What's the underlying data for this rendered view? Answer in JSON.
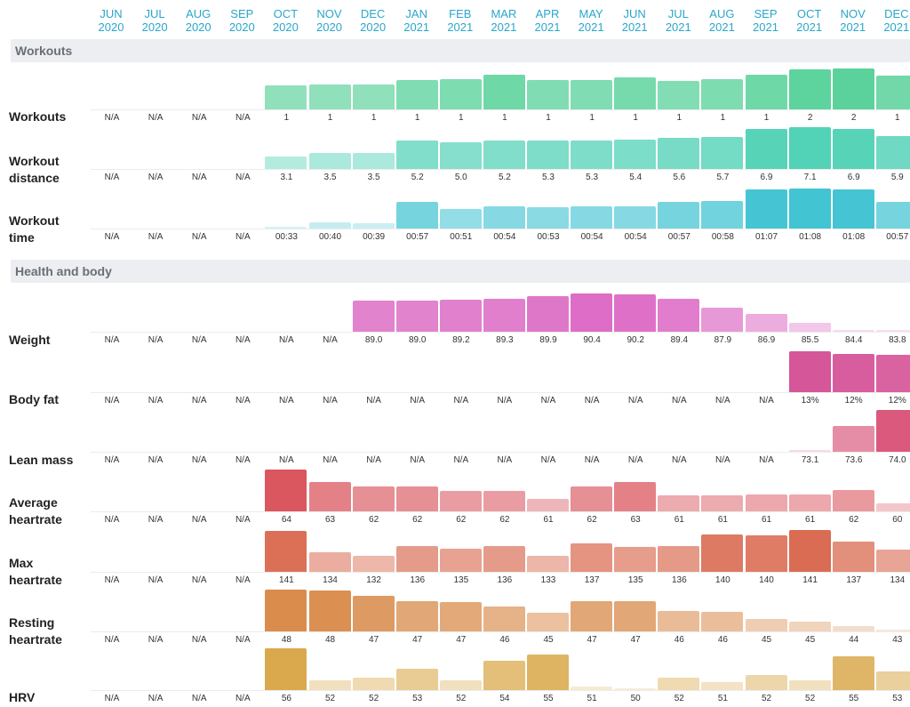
{
  "months": [
    {
      "m": "JUN",
      "y": "2020"
    },
    {
      "m": "JUL",
      "y": "2020"
    },
    {
      "m": "AUG",
      "y": "2020"
    },
    {
      "m": "SEP",
      "y": "2020"
    },
    {
      "m": "OCT",
      "y": "2020"
    },
    {
      "m": "NOV",
      "y": "2020"
    },
    {
      "m": "DEC",
      "y": "2020"
    },
    {
      "m": "JAN",
      "y": "2021"
    },
    {
      "m": "FEB",
      "y": "2021"
    },
    {
      "m": "MAR",
      "y": "2021"
    },
    {
      "m": "APR",
      "y": "2021"
    },
    {
      "m": "MAY",
      "y": "2021"
    },
    {
      "m": "JUN",
      "y": "2021"
    },
    {
      "m": "JUL",
      "y": "2021"
    },
    {
      "m": "AUG",
      "y": "2021"
    },
    {
      "m": "SEP",
      "y": "2021"
    },
    {
      "m": "OCT",
      "y": "2021"
    },
    {
      "m": "NOV",
      "y": "2021"
    },
    {
      "m": "DEC",
      "y": "2021"
    }
  ],
  "sections": [
    {
      "title": "Workouts",
      "rows": [
        0,
        1,
        2
      ]
    },
    {
      "title": "Health and body",
      "rows": [
        3,
        4,
        5,
        6,
        7,
        8,
        9
      ]
    }
  ],
  "chart_data": {
    "type": "bar",
    "categories": [
      "JUN 2020",
      "JUL 2020",
      "AUG 2020",
      "SEP 2020",
      "OCT 2020",
      "NOV 2020",
      "DEC 2020",
      "JAN 2021",
      "FEB 2021",
      "MAR 2021",
      "APR 2021",
      "MAY 2021",
      "JUN 2021",
      "JUL 2021",
      "AUG 2021",
      "SEP 2021",
      "OCT 2021",
      "NOV 2021",
      "DEC 2021"
    ],
    "series": [
      {
        "name": "Workouts",
        "color": "#4fcf94",
        "values": [
          null,
          null,
          null,
          null,
          1,
          1,
          1,
          1,
          1,
          1,
          1,
          1,
          1,
          1,
          1,
          1,
          2,
          2,
          1
        ],
        "labels": [
          "N/A",
          "N/A",
          "N/A",
          "N/A",
          "1",
          "1",
          "1",
          "1",
          "1",
          "1",
          "1",
          "1",
          "1",
          "1",
          "1",
          "1",
          "2",
          "2",
          "1"
        ],
        "barLevels": [
          0,
          0,
          0,
          0,
          0.55,
          0.56,
          0.56,
          0.66,
          0.68,
          0.78,
          0.66,
          0.66,
          0.72,
          0.64,
          0.68,
          0.78,
          0.9,
          0.92,
          0.76
        ]
      },
      {
        "name": "Workout distance",
        "color": "#4fd1b5",
        "values": [
          null,
          null,
          null,
          null,
          3.1,
          3.5,
          3.5,
          5.2,
          5.0,
          5.2,
          5.3,
          5.3,
          5.4,
          5.6,
          5.7,
          6.9,
          7.1,
          6.9,
          5.9
        ],
        "labels": [
          "N/A",
          "N/A",
          "N/A",
          "N/A",
          "3.1",
          "3.5",
          "3.5",
          "5.2",
          "5.0",
          "5.2",
          "5.3",
          "5.3",
          "5.4",
          "5.6",
          "5.7",
          "6.9",
          "7.1",
          "6.9",
          "5.9"
        ]
      },
      {
        "name": "Workout time",
        "color": "#3fc3d2",
        "values": [
          null,
          null,
          null,
          null,
          33,
          40,
          39,
          57,
          51,
          54,
          53,
          54,
          54,
          57,
          58,
          67,
          68,
          68,
          57
        ],
        "labels": [
          "N/A",
          "N/A",
          "N/A",
          "N/A",
          "00:33",
          "00:40",
          "00:39",
          "00:57",
          "00:51",
          "00:54",
          "00:53",
          "00:54",
          "00:54",
          "00:57",
          "00:58",
          "01:07",
          "01:08",
          "01:08",
          "00:57"
        ],
        "barLevels": [
          0,
          0,
          0,
          0,
          0.04,
          0.15,
          0.12,
          0.65,
          0.47,
          0.55,
          0.53,
          0.55,
          0.55,
          0.65,
          0.68,
          0.96,
          0.98,
          0.96,
          0.65
        ]
      },
      {
        "name": "Weight",
        "color": "#d95cbf",
        "values": [
          null,
          null,
          null,
          null,
          null,
          null,
          89.0,
          89.0,
          89.2,
          89.3,
          89.9,
          90.4,
          90.2,
          89.4,
          87.9,
          86.9,
          85.5,
          84.4,
          83.8
        ],
        "labels": [
          "N/A",
          "N/A",
          "N/A",
          "N/A",
          "N/A",
          "N/A",
          "89.0",
          "89.0",
          "89.2",
          "89.3",
          "89.9",
          "90.4",
          "90.2",
          "89.4",
          "87.9",
          "86.9",
          "85.5",
          "84.4",
          "83.8"
        ],
        "barLevels": [
          0,
          0,
          0,
          0,
          0,
          0,
          0.71,
          0.71,
          0.73,
          0.74,
          0.8,
          0.87,
          0.84,
          0.75,
          0.54,
          0.4,
          0.2,
          0.05,
          0.03
        ]
      },
      {
        "name": "Body fat",
        "color": "#d44f96",
        "values": [
          null,
          null,
          null,
          null,
          null,
          null,
          null,
          null,
          null,
          null,
          null,
          null,
          null,
          null,
          null,
          null,
          13,
          12,
          12
        ],
        "labels": [
          "N/A",
          "N/A",
          "N/A",
          "N/A",
          "N/A",
          "N/A",
          "N/A",
          "N/A",
          "N/A",
          "N/A",
          "N/A",
          "N/A",
          "N/A",
          "N/A",
          "N/A",
          "N/A",
          "13%",
          "12%",
          "12%"
        ],
        "barLevels": [
          0,
          0,
          0,
          0,
          0,
          0,
          0,
          0,
          0,
          0,
          0,
          0,
          0,
          0,
          0,
          0,
          0.95,
          0.9,
          0.87
        ]
      },
      {
        "name": "Lean mass",
        "color": "#d9567a",
        "values": [
          null,
          null,
          null,
          null,
          null,
          null,
          null,
          null,
          null,
          null,
          null,
          null,
          null,
          null,
          null,
          null,
          73.1,
          73.6,
          74.0
        ],
        "labels": [
          "N/A",
          "N/A",
          "N/A",
          "N/A",
          "N/A",
          "N/A",
          "N/A",
          "N/A",
          "N/A",
          "N/A",
          "N/A",
          "N/A",
          "N/A",
          "N/A",
          "N/A",
          "N/A",
          "73.1",
          "73.6",
          "74.0"
        ],
        "barLevels": [
          0,
          0,
          0,
          0,
          0,
          0,
          0,
          0,
          0,
          0,
          0,
          0,
          0,
          0,
          0,
          0,
          0.05,
          0.6,
          0.98
        ]
      },
      {
        "name": "Average heartrate",
        "color": "#d9545c",
        "values": [
          null,
          null,
          null,
          null,
          64,
          63,
          62,
          62,
          62,
          62,
          61,
          62,
          63,
          61,
          61,
          61,
          61,
          62,
          60
        ],
        "labels": [
          "N/A",
          "N/A",
          "N/A",
          "N/A",
          "64",
          "63",
          "62",
          "62",
          "62",
          "62",
          "61",
          "62",
          "63",
          "61",
          "61",
          "61",
          "61",
          "62",
          "60"
        ],
        "barLevels": [
          0,
          0,
          0,
          0,
          0.98,
          0.68,
          0.58,
          0.58,
          0.48,
          0.48,
          0.3,
          0.58,
          0.68,
          0.38,
          0.38,
          0.4,
          0.4,
          0.5,
          0.18
        ]
      },
      {
        "name": "Max heartrate",
        "color": "#d96a50",
        "values": [
          null,
          null,
          null,
          null,
          141,
          134,
          132,
          136,
          135,
          136,
          133,
          137,
          135,
          136,
          140,
          140,
          141,
          137,
          134
        ],
        "labels": [
          "N/A",
          "N/A",
          "N/A",
          "N/A",
          "141",
          "134",
          "132",
          "136",
          "135",
          "136",
          "133",
          "137",
          "135",
          "136",
          "140",
          "140",
          "141",
          "137",
          "134"
        ],
        "barLevels": [
          0,
          0,
          0,
          0,
          0.95,
          0.45,
          0.37,
          0.6,
          0.54,
          0.6,
          0.38,
          0.66,
          0.58,
          0.61,
          0.87,
          0.85,
          0.98,
          0.7,
          0.52
        ]
      },
      {
        "name": "Resting heartrate",
        "color": "#d98a4a",
        "values": [
          null,
          null,
          null,
          null,
          48,
          48,
          47,
          47,
          47,
          46,
          45,
          47,
          47,
          46,
          46,
          45,
          45,
          44,
          43
        ],
        "labels": [
          "N/A",
          "N/A",
          "N/A",
          "N/A",
          "48",
          "48",
          "47",
          "47",
          "47",
          "46",
          "45",
          "47",
          "47",
          "46",
          "46",
          "45",
          "45",
          "44",
          "43"
        ],
        "barLevels": [
          0,
          0,
          0,
          0,
          0.98,
          0.95,
          0.83,
          0.7,
          0.68,
          0.58,
          0.43,
          0.7,
          0.7,
          0.48,
          0.46,
          0.3,
          0.23,
          0.13,
          0.04
        ]
      },
      {
        "name": "HRV",
        "color": "#d9a84a",
        "values": [
          null,
          null,
          null,
          null,
          56,
          52,
          52,
          53,
          52,
          54,
          55,
          51,
          50,
          52,
          51,
          52,
          52,
          55,
          53
        ],
        "labels": [
          "N/A",
          "N/A",
          "N/A",
          "N/A",
          "56",
          "52",
          "52",
          "53",
          "52",
          "54",
          "55",
          "51",
          "50",
          "52",
          "51",
          "52",
          "52",
          "55",
          "53"
        ],
        "barLevels": [
          0,
          0,
          0,
          0,
          0.98,
          0.22,
          0.3,
          0.5,
          0.22,
          0.68,
          0.83,
          0.08,
          0.04,
          0.3,
          0.18,
          0.35,
          0.22,
          0.8,
          0.44
        ]
      }
    ]
  }
}
